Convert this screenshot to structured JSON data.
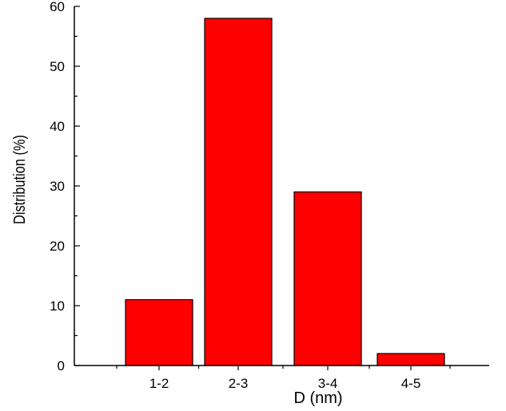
{
  "chart_data": {
    "type": "bar",
    "title": "",
    "xlabel": "D (nm)",
    "ylabel": "Distribution (%)",
    "categories": [
      "1-2",
      "2-3",
      "3-4",
      "4-5"
    ],
    "values": [
      11,
      58,
      29,
      2
    ],
    "ylim": [
      0,
      60
    ],
    "yticks": [
      0,
      10,
      20,
      30,
      40,
      50,
      60
    ],
    "grid": false,
    "bar_color": "#ff0000",
    "bar_edge_color": "#000000"
  }
}
